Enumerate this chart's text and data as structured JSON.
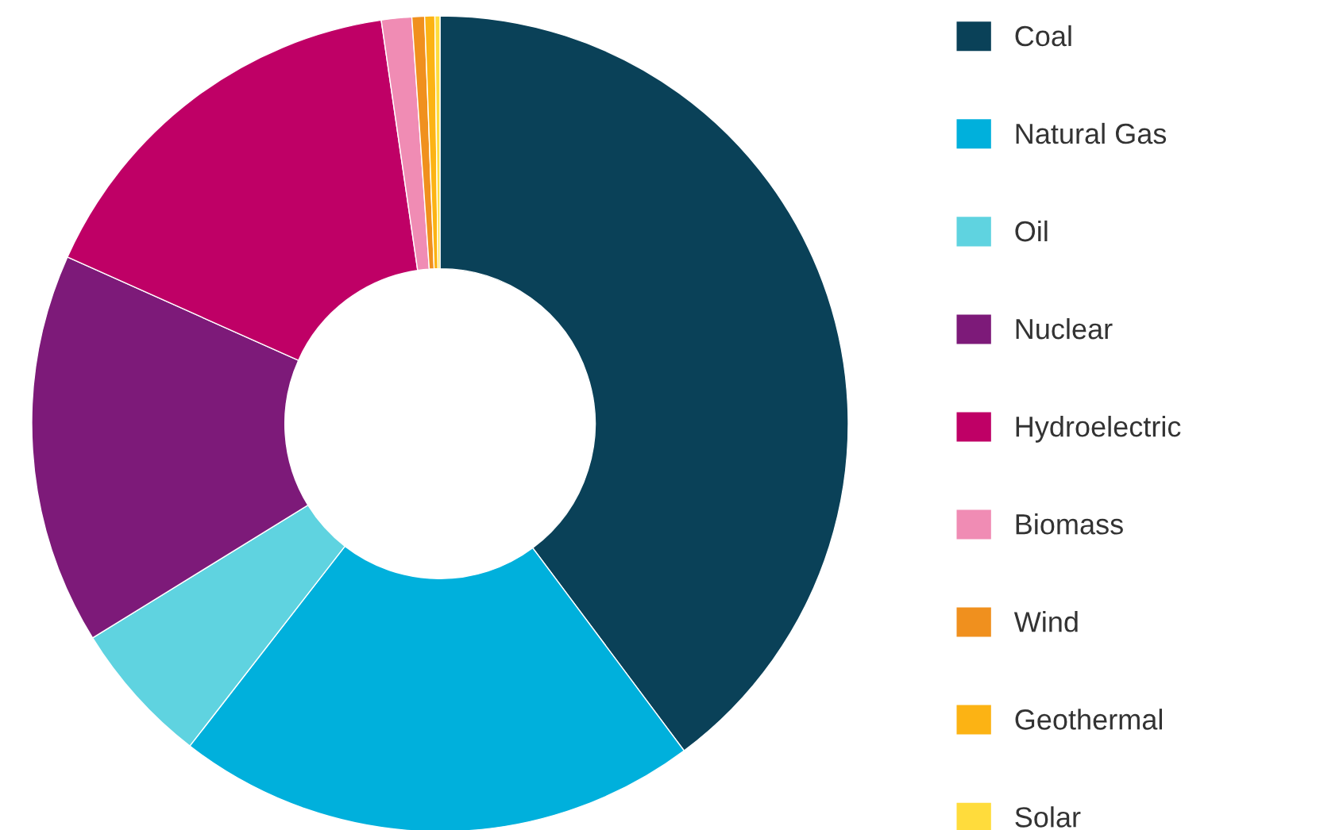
{
  "chart_data": {
    "type": "donut",
    "categories": [
      "Coal",
      "Natural Gas",
      "Oil",
      "Nuclear",
      "Hydroelectric",
      "Biomass",
      "Wind",
      "Geothermal",
      "Solar"
    ],
    "values": [
      39.8,
      20.7,
      5.7,
      15.5,
      16.0,
      1.2,
      0.5,
      0.4,
      0.2
    ],
    "colors": [
      "#0a4158",
      "#00b0dc",
      "#5fd3e0",
      "#7d1a79",
      "#bf0066",
      "#f08cb4",
      "#f0901e",
      "#fcb314",
      "#ffdc3c"
    ],
    "legend": "right"
  }
}
